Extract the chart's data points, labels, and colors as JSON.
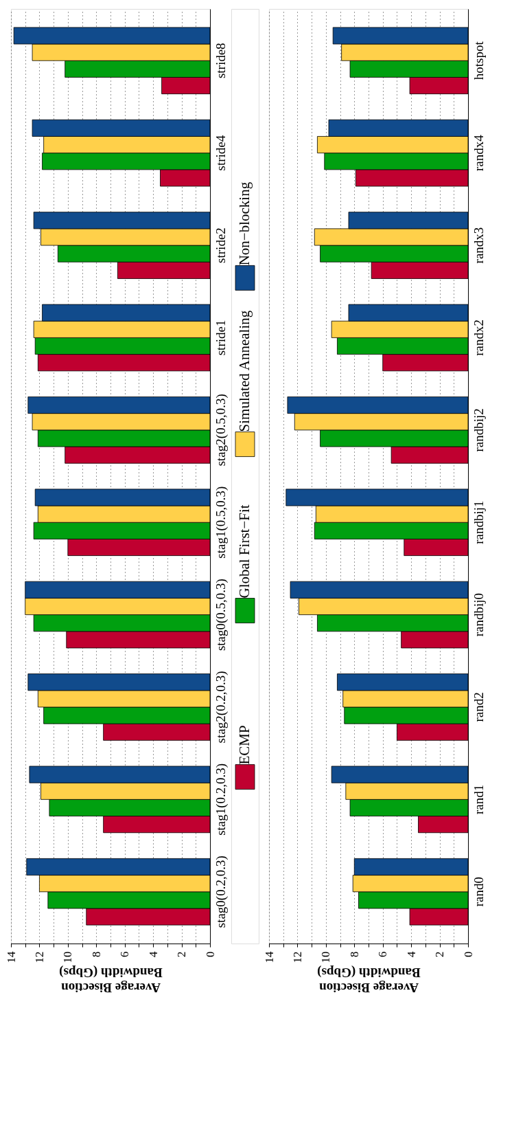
{
  "chart_data": [
    {
      "type": "bar",
      "orientation": "horizontal",
      "xlabel": "Average Bisection Bandwidth (Gbps)",
      "categories": [
        "stride8",
        "stride4",
        "stride2",
        "stride1",
        "stag2(0.5,0.3)",
        "stag1(0.5,0.3)",
        "stag0(0.5,0.3)",
        "stag2(0.2,0.3)",
        "stag1(0.2,0.3)",
        "stag0(0.2,0.3)"
      ],
      "series": [
        {
          "name": "ECMP",
          "color": "#c00030",
          "values": [
            3.4,
            3.5,
            6.5,
            12.1,
            10.2,
            10.0,
            10.1,
            7.5,
            7.5,
            8.7
          ]
        },
        {
          "name": "Global First−Fit",
          "color": "#00a010",
          "values": [
            10.2,
            11.8,
            10.7,
            12.3,
            12.1,
            12.4,
            12.4,
            11.7,
            11.3,
            11.4
          ]
        },
        {
          "name": "Simulated Annealing",
          "color": "#ffd04a",
          "values": [
            12.5,
            11.7,
            11.9,
            12.4,
            12.5,
            12.1,
            13.0,
            12.1,
            11.9,
            12.0
          ]
        },
        {
          "name": "Non−blocking",
          "color": "#114b8c",
          "values": [
            13.8,
            12.5,
            12.4,
            11.8,
            12.8,
            12.3,
            13.0,
            12.8,
            12.7,
            12.9
          ]
        }
      ],
      "xlim": [
        14,
        0
      ],
      "xticks": [
        14,
        {
          "value": 13,
          "label": null
        },
        12,
        {
          "value": 11,
          "label": null
        },
        10,
        {
          "value": 9,
          "label": null
        },
        8,
        {
          "value": 7,
          "label": null
        },
        6,
        {
          "value": 5,
          "label": null
        },
        4,
        {
          "value": 3,
          "label": null
        },
        2,
        {
          "value": 1,
          "label": null
        },
        0
      ],
      "grid": "x",
      "legend": "right"
    },
    {
      "type": "bar",
      "orientation": "horizontal",
      "xlabel": "Average Bisection Bandwidth (Gbps)",
      "categories": [
        "hotspot",
        "randx4",
        "randx3",
        "randx2",
        "randbij2",
        "randbij1",
        "randbij0",
        "rand2",
        "rand1",
        "rand0"
      ],
      "series": [
        {
          "color": "#c00030",
          "values": [
            4.1,
            7.9,
            6.8,
            6.0,
            5.4,
            4.5,
            4.7,
            5.0,
            3.5,
            4.1
          ]
        },
        {
          "color": "#00a010",
          "values": [
            8.3,
            10.1,
            10.4,
            9.2,
            10.4,
            10.8,
            10.6,
            8.7,
            8.3,
            7.7
          ]
        },
        {
          "color": "#ffd04a",
          "values": [
            8.9,
            10.6,
            10.8,
            9.6,
            12.2,
            10.7,
            11.9,
            8.8,
            8.6,
            8.1
          ]
        },
        {
          "color": "#114b8c",
          "values": [
            9.5,
            9.8,
            8.4,
            8.4,
            12.7,
            12.8,
            12.5,
            9.2,
            9.6,
            8.0
          ]
        }
      ],
      "xlim": [
        14,
        0
      ],
      "xticks": [
        14,
        {
          "value": 13,
          "label": null
        },
        12,
        {
          "value": 11,
          "label": null
        },
        10,
        {
          "value": 9,
          "label": null
        },
        8,
        {
          "value": 7,
          "label": null
        },
        6,
        {
          "value": 5,
          "label": null
        },
        4,
        {
          "value": 3,
          "label": null
        },
        2,
        {
          "value": 1,
          "label": null
        },
        0
      ],
      "grid": "x"
    }
  ]
}
